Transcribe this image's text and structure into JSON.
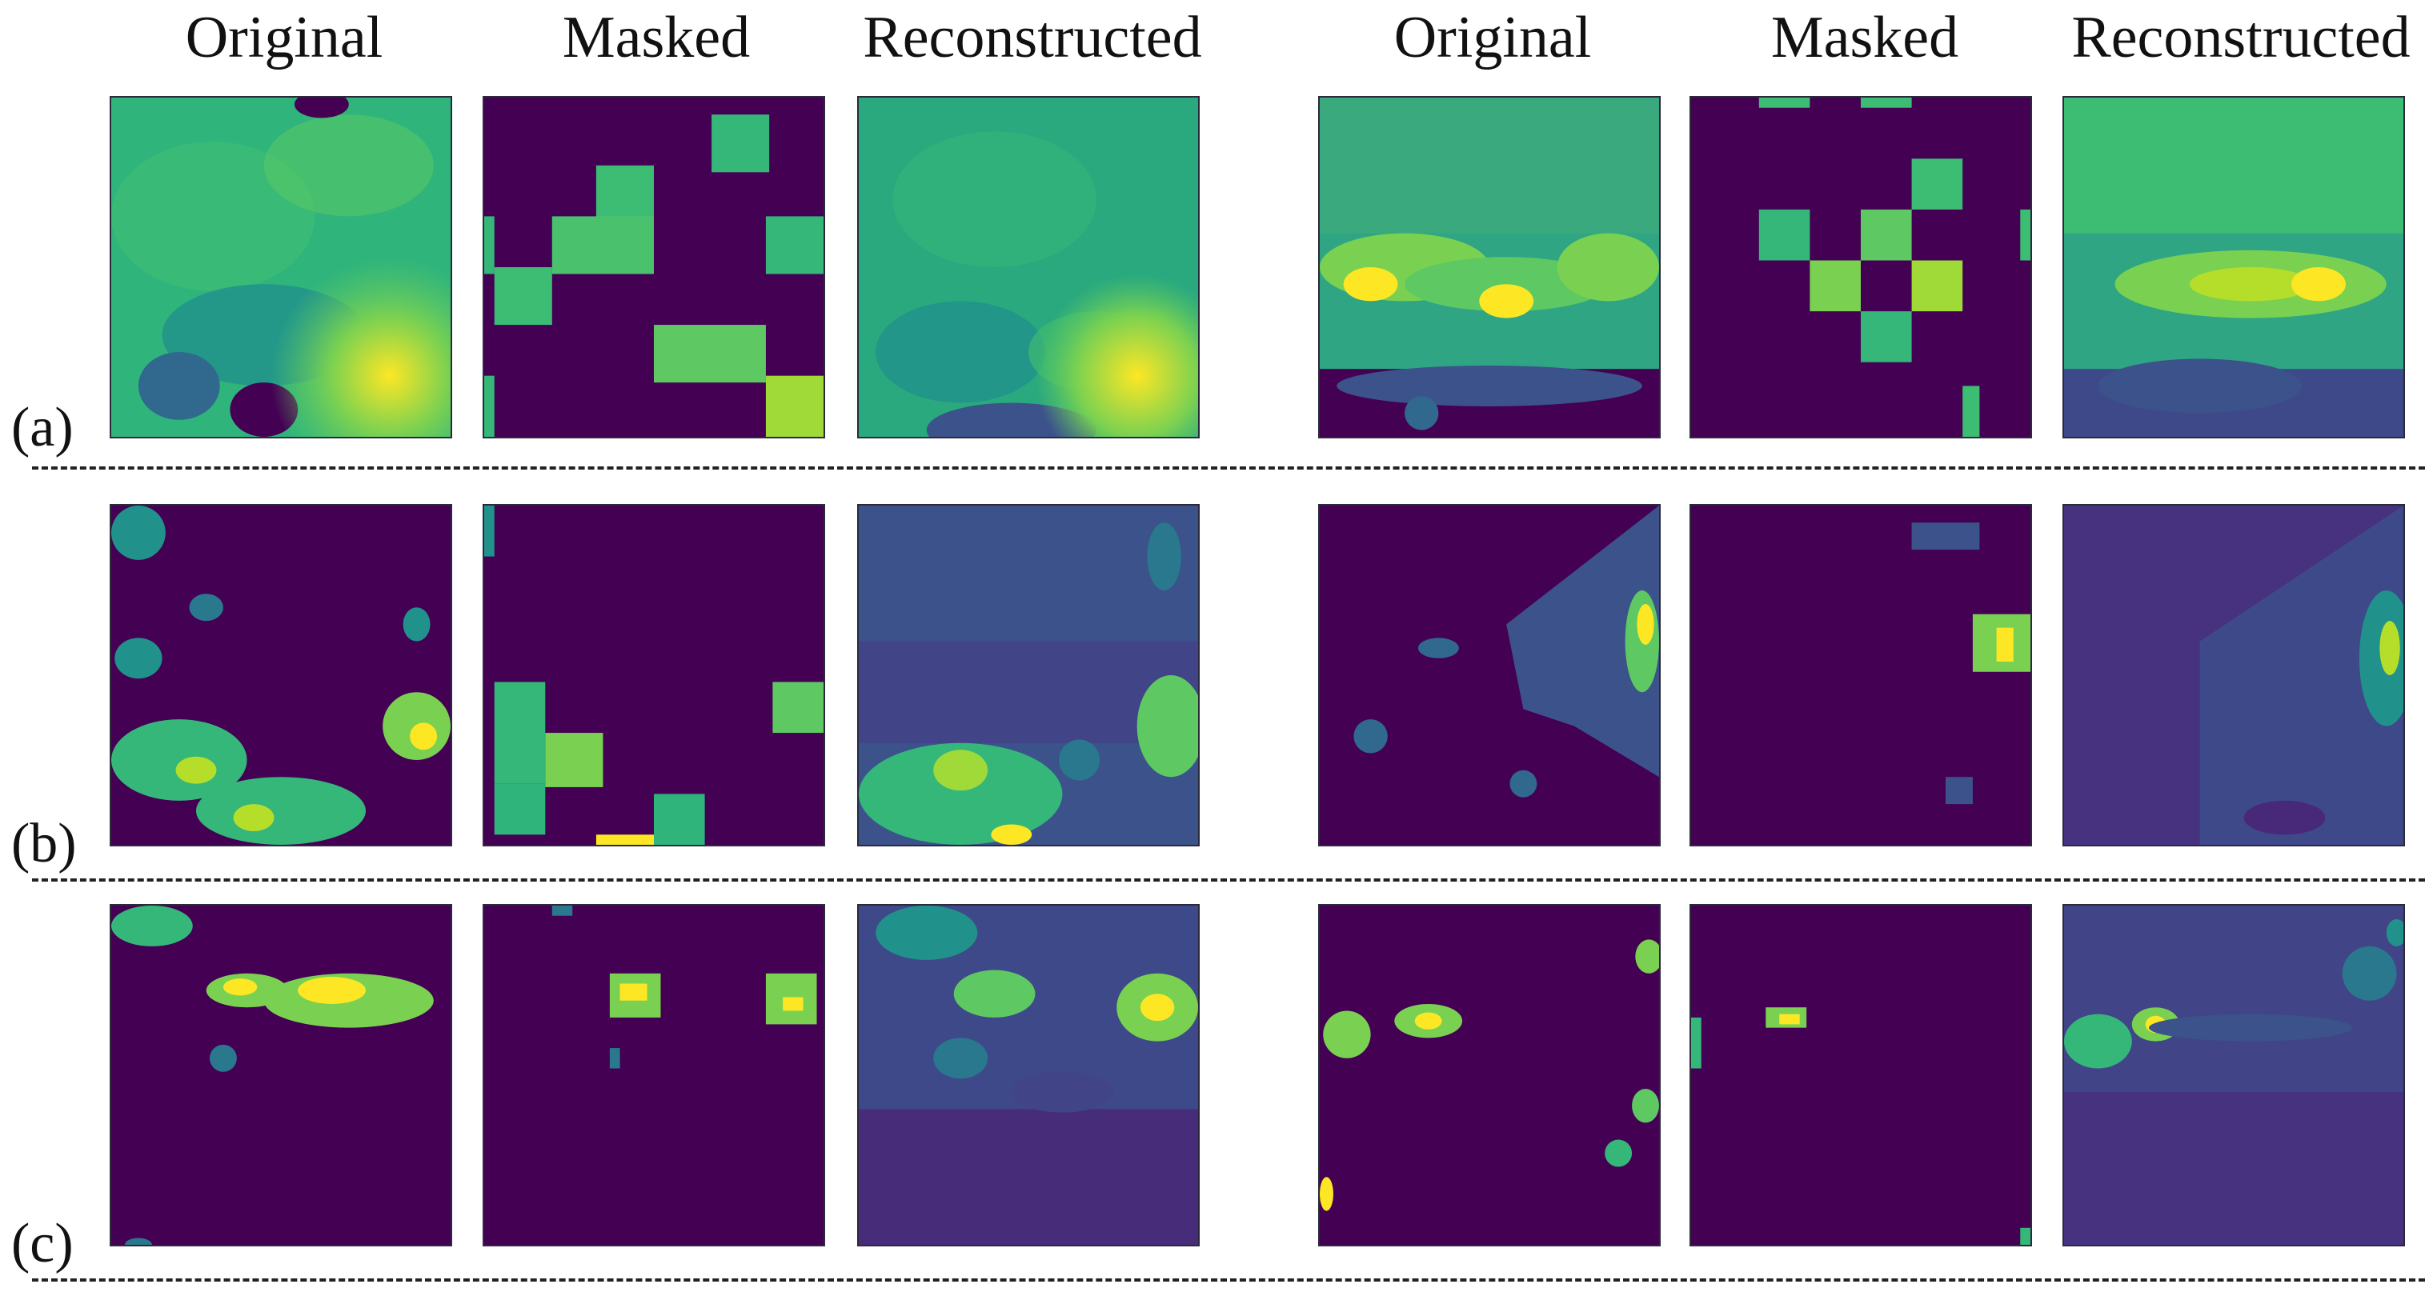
{
  "column_titles": {
    "left": [
      "Original",
      "Masked",
      "Reconstructed"
    ],
    "right": [
      "Original",
      "Masked",
      "Reconstructed"
    ]
  },
  "row_labels": [
    "(a)",
    "(b)",
    "(c)"
  ],
  "colormap": {
    "name": "viridis",
    "background": "#440154",
    "low": "#3b528b",
    "mid": "#21918c",
    "high": "#5ec962",
    "peak": "#fde725"
  }
}
